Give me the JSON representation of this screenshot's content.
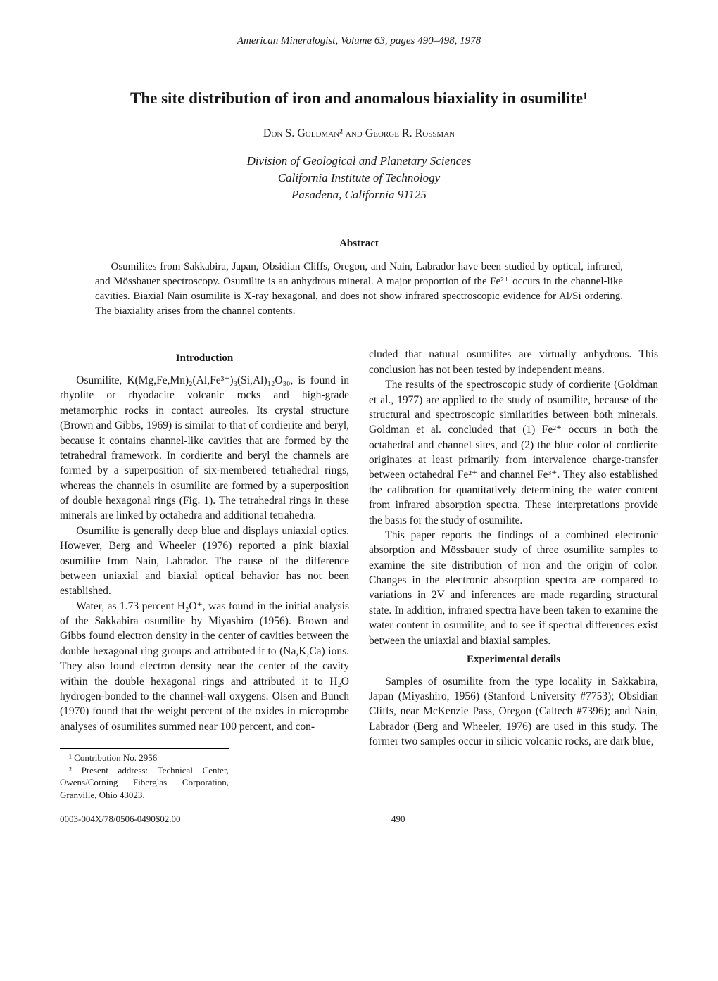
{
  "journal_header": "American Mineralogist, Volume 63, pages 490–498, 1978",
  "title": "The site distribution of iron and anomalous biaxiality in osumilite¹",
  "authors_html": "Don S. Goldman² and George R. Rossman",
  "affiliation_lines": [
    "Division of Geological and Planetary Sciences",
    "California Institute of Technology",
    "Pasadena, California 91125"
  ],
  "abstract_heading": "Abstract",
  "abstract_body": "Osumilites from Sakkabira, Japan, Obsidian Cliffs, Oregon, and Nain, Labrador have been studied by optical, infrared, and Mössbauer spectroscopy. Osumilite is an anhydrous mineral. A major proportion of the Fe²⁺ occurs in the channel-like cavities. Biaxial Nain osumilite is X-ray hexagonal, and does not show infrared spectroscopic evidence for Al/Si ordering. The biaxiality arises from the channel contents.",
  "section_intro": "Introduction",
  "left_p1": "Osumilite, K(Mg,Fe,Mn)₂(Al,Fe³⁺)₃(Si,Al)₁₂O₃₀, is found in rhyolite or rhyodacite volcanic rocks and high-grade metamorphic rocks in contact aureoles. Its crystal structure (Brown and Gibbs, 1969) is similar to that of cordierite and beryl, because it contains channel-like cavities that are formed by the tetrahedral framework. In cordierite and beryl the channels are formed by a superposition of six-membered tetrahedral rings, whereas the channels in osumilite are formed by a superposition of double hexagonal rings (Fig. 1). The tetrahedral rings in these minerals are linked by octahedra and additional tetrahedra.",
  "left_p2": "Osumilite is generally deep blue and displays uniaxial optics. However, Berg and Wheeler (1976) reported a pink biaxial osumilite from Nain, Labrador. The cause of the difference between uniaxial and biaxial optical behavior has not been established.",
  "left_p3": "Water, as 1.73 percent H₂O⁺, was found in the initial analysis of the Sakkabira osumilite by Miyashiro (1956). Brown and Gibbs found electron density in the center of cavities between the double hexagonal ring groups and attributed it to (Na,K,Ca) ions. They also found electron density near the center of the cavity within the double hexagonal rings and attributed it to H₂O hydrogen-bonded to the channel-wall oxygens. Olsen and Bunch (1970) found that the weight percent of the oxides in microprobe analyses of osumilites summed near 100 percent, and con-",
  "right_p1": "cluded that natural osumilites are virtually anhydrous. This conclusion has not been tested by independent means.",
  "right_p2": "The results of the spectroscopic study of cordierite (Goldman et al., 1977) are applied to the study of osumilite, because of the structural and spectroscopic similarities between both minerals. Goldman et al. concluded that (1) Fe²⁺ occurs in both the octahedral and channel sites, and (2) the blue color of cordierite originates at least primarily from intervalence charge-transfer between octahedral Fe²⁺ and channel Fe³⁺. They also established the calibration for quantitatively determining the water content from infrared absorption spectra. These interpretations provide the basis for the study of osumilite.",
  "right_p3": "This paper reports the findings of a combined electronic absorption and Mössbauer study of three osumilite samples to examine the site distribution of iron and the origin of color. Changes in the electronic absorption spectra are compared to variations in 2V and inferences are made regarding structural state. In addition, infrared spectra have been taken to examine the water content in osumilite, and to see if spectral differences exist between the uniaxial and biaxial samples.",
  "section_exp": "Experimental details",
  "right_p4": "Samples of osumilite from the type locality in Sakkabira, Japan (Miyashiro, 1956) (Stanford University #7753); Obsidian Cliffs, near McKenzie Pass, Oregon (Caltech #7396); and Nain, Labrador (Berg and Wheeler, 1976) are used in this study. The former two samples occur in silicic volcanic rocks, are dark blue,",
  "footnote1": "¹ Contribution No. 2956",
  "footnote2": "² Present address: Technical Center, Owens/Corning Fiberglas Corporation, Granville, Ohio 43023.",
  "footer_left": "0003-004X/78/0506-0490$02.00",
  "footer_page": "490"
}
